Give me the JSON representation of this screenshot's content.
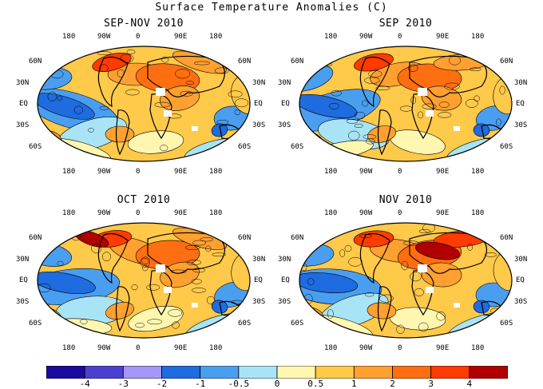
{
  "title": "Surface Temperature Anomalies (C)",
  "panels": [
    {
      "title": "SEP-NOV 2010"
    },
    {
      "title": "SEP 2010"
    },
    {
      "title": "OCT 2010"
    },
    {
      "title": "NOV 2010"
    }
  ],
  "lon_labels": [
    "180",
    "90W",
    "0",
    "90E",
    "180"
  ],
  "lat_labels_left": [
    "60N",
    "30N",
    "EQ",
    "30S",
    "60S"
  ],
  "lat_labels_right": [
    "60N",
    "30N",
    "EQ",
    "30S",
    "60S"
  ],
  "colorbar": {
    "colors": [
      "#1a0a9e",
      "#4b3fd0",
      "#a497f5",
      "#1f6be0",
      "#4a9ef0",
      "#a8e4f5",
      "#fff7b0",
      "#ffc94a",
      "#ffa030",
      "#ff6e10",
      "#ff3b00",
      "#b00000"
    ],
    "tick_labels": [
      "-4",
      "-3",
      "-2",
      "-1",
      "-0.5",
      "0",
      "0.5",
      "1",
      "2",
      "3",
      "4"
    ]
  }
}
